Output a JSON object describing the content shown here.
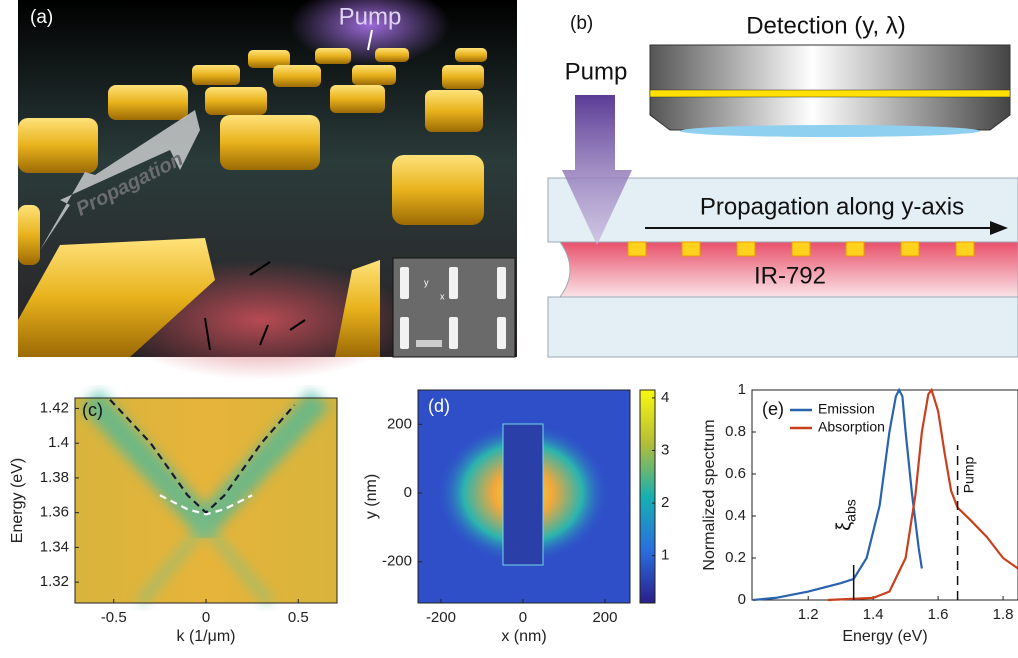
{
  "panel_a": {
    "label": "(a)",
    "pump": "Pump",
    "propagation": "Propagation",
    "inset_y": "y",
    "inset_x": "x"
  },
  "panel_b": {
    "label": "(b)",
    "detection": "Detection (y, λ)",
    "pump": "Pump",
    "propagation": "Propagation along y-axis",
    "dye": "IR-792"
  },
  "chart_data": [
    {
      "type": "heatmap",
      "panel_label": "(c)",
      "xlabel": "k (1/μm)",
      "ylabel": "Energy (eV)",
      "xlim": [
        -0.71,
        0.71
      ],
      "ylim": [
        1.308,
        1.426
      ],
      "xticks": [
        -0.5,
        0,
        0.5
      ],
      "yticks": [
        1.32,
        1.34,
        1.36,
        1.38,
        1.4,
        1.42
      ],
      "series": [
        {
          "color": "#1a1a2e",
          "linestyle": "dashed",
          "x": [
            -0.52,
            -0.3,
            -0.1,
            0,
            0.1,
            0.3,
            0.48
          ],
          "values": [
            1.425,
            1.4,
            1.37,
            1.36,
            1.37,
            1.4,
            1.422
          ]
        },
        {
          "color": "#ffffff",
          "linestyle": "dashed",
          "x": [
            -0.25,
            -0.1,
            0,
            0.1,
            0.25
          ],
          "values": [
            1.37,
            1.362,
            1.359,
            1.362,
            1.37
          ]
        }
      ]
    },
    {
      "type": "heatmap",
      "panel_label": "(d)",
      "xlabel": "x (nm)",
      "ylabel": "y (nm)",
      "xlim": [
        -256,
        261
      ],
      "ylim": [
        -320,
        300
      ],
      "xticks": [
        -200,
        0,
        200
      ],
      "yticks": [
        -200,
        0,
        200
      ],
      "colorbar": {
        "lim": [
          0.1,
          4.15
        ],
        "ticks": [
          1,
          2,
          3,
          4
        ]
      }
    },
    {
      "type": "line",
      "panel_label": "(e)",
      "xlabel": "Energy (eV)",
      "ylabel": "Normalized spectrum",
      "xlim": [
        1.027,
        1.846
      ],
      "ylim": [
        0,
        1
      ],
      "xticks": [
        1.2,
        1.4,
        1.6,
        1.8
      ],
      "yticks": [
        0,
        0.2,
        0.4,
        0.6,
        0.8,
        1
      ],
      "legend": "upper left",
      "series": [
        {
          "name": "Emission",
          "color": "#2a62ae",
          "x": [
            1.03,
            1.1,
            1.2,
            1.3,
            1.34,
            1.38,
            1.42,
            1.45,
            1.47,
            1.48,
            1.49,
            1.5,
            1.52,
            1.54,
            1.55
          ],
          "values": [
            0,
            0.01,
            0.04,
            0.08,
            0.1,
            0.2,
            0.45,
            0.8,
            0.97,
            1.0,
            0.97,
            0.8,
            0.5,
            0.25,
            0.15
          ]
        },
        {
          "name": "Absorption",
          "color": "#c8401e",
          "x": [
            1.26,
            1.4,
            1.45,
            1.5,
            1.53,
            1.55,
            1.57,
            1.58,
            1.6,
            1.62,
            1.64,
            1.66,
            1.7,
            1.75,
            1.8,
            1.846
          ],
          "values": [
            0,
            0.01,
            0.04,
            0.2,
            0.5,
            0.8,
            0.98,
            1.0,
            0.9,
            0.7,
            0.52,
            0.44,
            0.38,
            0.3,
            0.2,
            0.15
          ]
        }
      ],
      "vlines": [
        {
          "x": 1.34,
          "label": "ξ",
          "sub": "abs",
          "style": "solid"
        },
        {
          "x": 1.66,
          "label": "Pump",
          "style": "dashed"
        }
      ]
    }
  ]
}
